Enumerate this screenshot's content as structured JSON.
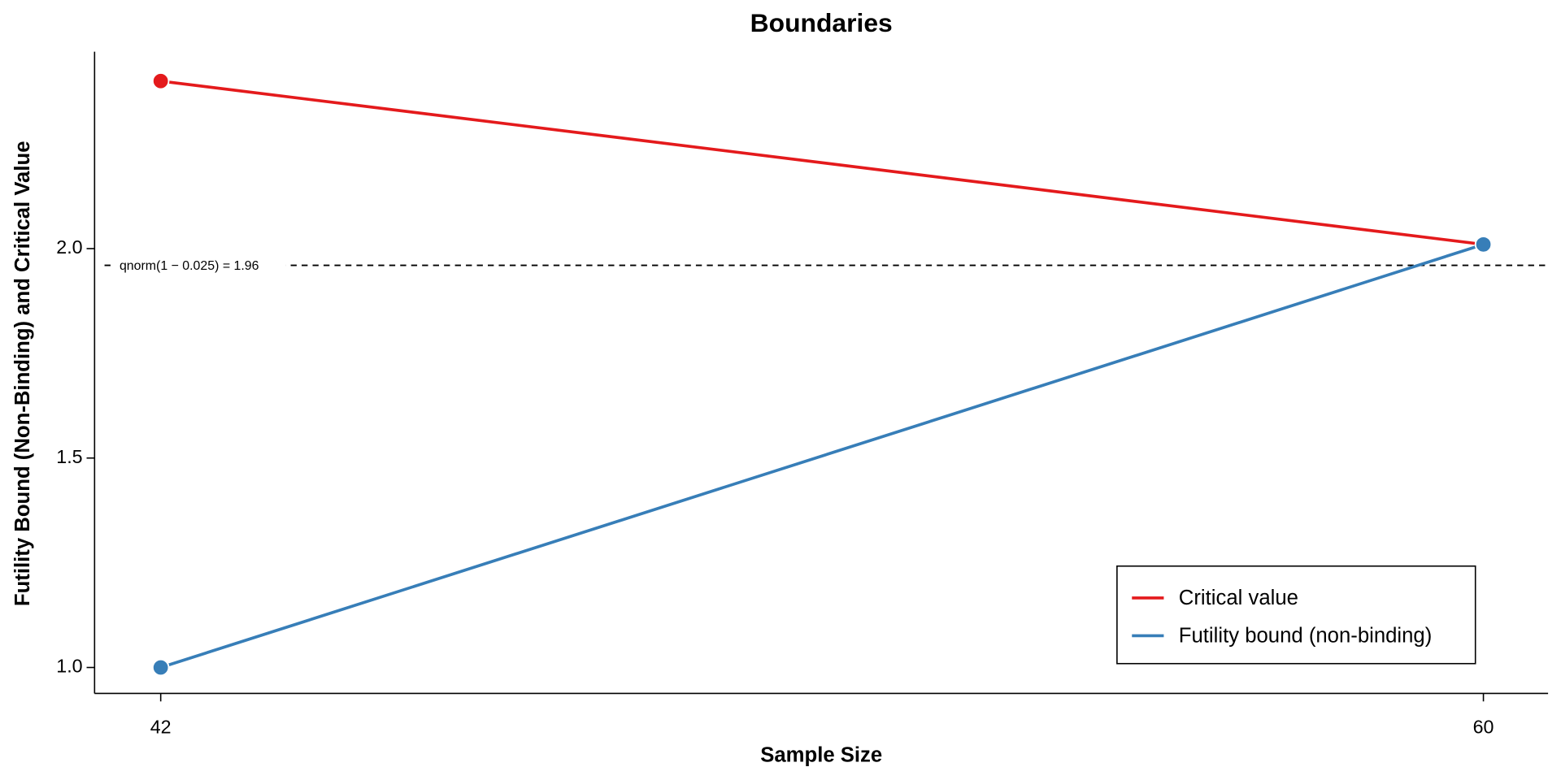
{
  "chart_data": {
    "type": "line",
    "title": "Boundaries",
    "xlabel": "Sample Size",
    "ylabel": "Futility Bound (Non-Binding) and Critical Value",
    "x": [
      42,
      60
    ],
    "series": [
      {
        "name": "Critical value",
        "color": "#e41a1c",
        "values": [
          2.4,
          2.01
        ]
      },
      {
        "name": "Futility bound (non-binding)",
        "color": "#377eb8",
        "values": [
          1.0,
          2.01
        ]
      }
    ],
    "xlim": [
      41.1,
      60.88
    ],
    "ylim": [
      0.938,
      2.47
    ],
    "xticks": [
      42,
      60
    ],
    "yticks": [
      {
        "value": 1.0,
        "label": "1.0"
      },
      {
        "value": 1.5,
        "label": "1.5"
      },
      {
        "value": 2.0,
        "label": "2.0"
      }
    ],
    "hline": {
      "value": 1.96,
      "label": "qnorm(1 − 0.025) = 1.96"
    },
    "legend": "bottom-right"
  }
}
